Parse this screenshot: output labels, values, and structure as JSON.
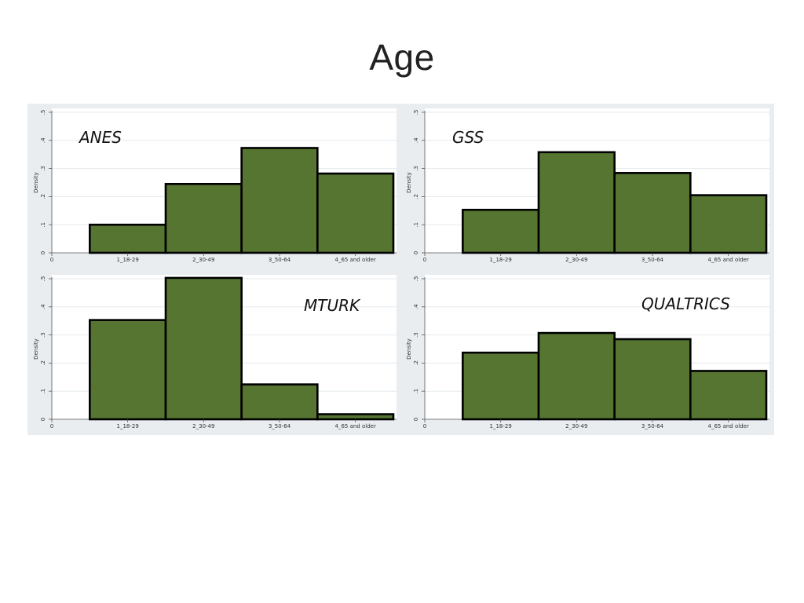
{
  "slide": {
    "title": "Age"
  },
  "style": {
    "bar_fill": "#567531",
    "bar_stroke": "#000000",
    "panel_bg": "#ffffff",
    "outer_bg": "#e9edf0",
    "grid": "#e6eaee"
  },
  "chart_data": [
    {
      "type": "bar",
      "panel_label": "ANES",
      "label_position": "top-left",
      "ylabel": "Density",
      "ylim": [
        0,
        0.5
      ],
      "yticks": [
        ".1",
        ".2",
        ".3",
        ".4",
        ".5"
      ],
      "y_zero_label": "0",
      "x_zero_label": "0",
      "grid": true,
      "categories": [
        "1_18-29",
        "2_30-49",
        "3_50-64",
        "4_65 and older"
      ],
      "values": [
        0.1,
        0.245,
        0.373,
        0.282
      ]
    },
    {
      "type": "bar",
      "panel_label": "GSS",
      "label_position": "top-left",
      "ylabel": "Density",
      "ylim": [
        0,
        0.5
      ],
      "yticks": [
        ".1",
        ".2",
        ".3",
        ".4",
        ".5"
      ],
      "y_zero_label": "0",
      "x_zero_label": "0",
      "grid": true,
      "categories": [
        "1_18-29",
        "2_30-49",
        "3_50-64",
        "4_65 and older"
      ],
      "values": [
        0.153,
        0.358,
        0.284,
        0.205
      ]
    },
    {
      "type": "bar",
      "panel_label": "MTURK",
      "label_position": "top-right",
      "ylabel": "Density",
      "ylim": [
        0,
        0.5
      ],
      "yticks": [
        ".1",
        ".2",
        ".3",
        ".4",
        ".5"
      ],
      "y_zero_label": "0",
      "x_zero_label": "0",
      "grid": true,
      "categories": [
        "1_18-29",
        "2_30-49",
        "3_50-64",
        "4_65 and older"
      ],
      "values": [
        0.353,
        0.503,
        0.124,
        0.018
      ]
    },
    {
      "type": "bar",
      "panel_label": "QUALTRICS",
      "label_position": "top-right",
      "ylabel": "Density",
      "ylim": [
        0,
        0.5
      ],
      "yticks": [
        ".1",
        ".2",
        ".3",
        ".4",
        ".5"
      ],
      "y_zero_label": "0",
      "x_zero_label": "0",
      "grid": true,
      "categories": [
        "1_18-29",
        "2_30-49",
        "3_50-64",
        "4_65 and older"
      ],
      "values": [
        0.237,
        0.307,
        0.285,
        0.172
      ]
    }
  ]
}
